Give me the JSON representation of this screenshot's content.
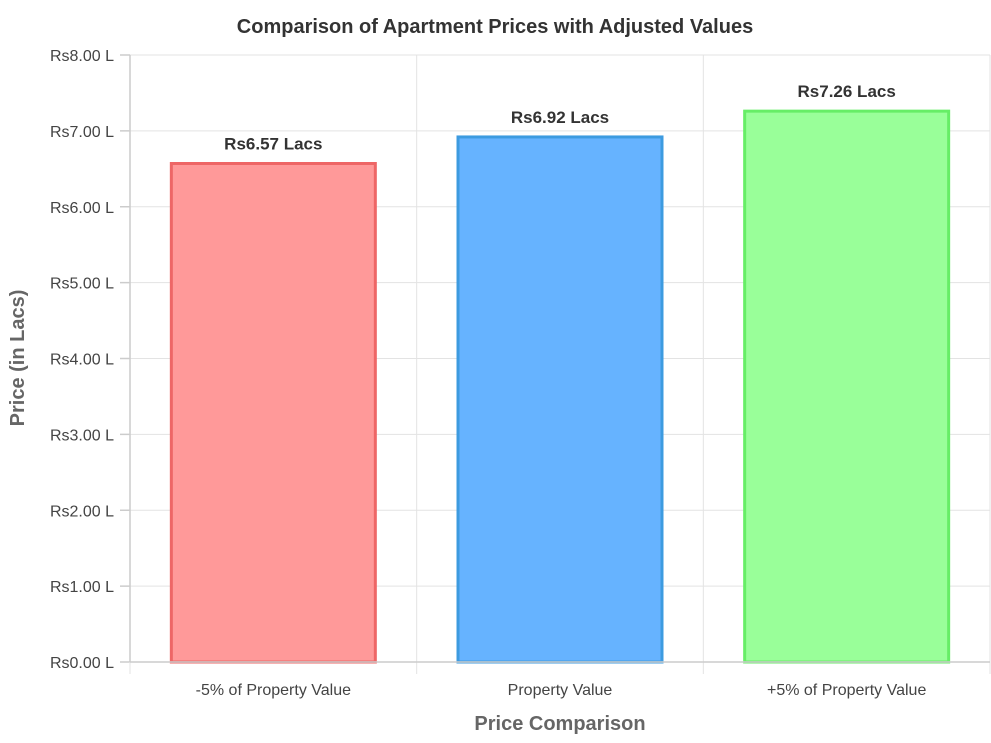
{
  "chart_data": {
    "type": "bar",
    "title": "Comparison of Apartment Prices with Adjusted Values",
    "xlabel": "Price Comparison",
    "ylabel": "Price (in Lacs)",
    "categories": [
      "-5% of Property Value",
      "Property Value",
      "+5% of Property Value"
    ],
    "values": [
      6.57,
      6.92,
      7.26
    ],
    "data_labels": [
      "Rs6.57 Lacs",
      "Rs6.92 Lacs",
      "Rs7.26 Lacs"
    ],
    "ylim": [
      0,
      8
    ],
    "yticks": [
      0,
      1,
      2,
      3,
      4,
      5,
      6,
      7,
      8
    ],
    "ytick_labels": [
      "Rs0.00 L",
      "Rs1.00 L",
      "Rs2.00 L",
      "Rs3.00 L",
      "Rs4.00 L",
      "Rs5.00 L",
      "Rs6.00 L",
      "Rs7.00 L",
      "Rs8.00 L"
    ],
    "grid": true,
    "legend": "none",
    "colors": {
      "fill": [
        "#ff9999",
        "#66b3ff",
        "#99ff99"
      ],
      "stroke": [
        "#ee6666",
        "#3d9be0",
        "#66ee66"
      ]
    }
  }
}
